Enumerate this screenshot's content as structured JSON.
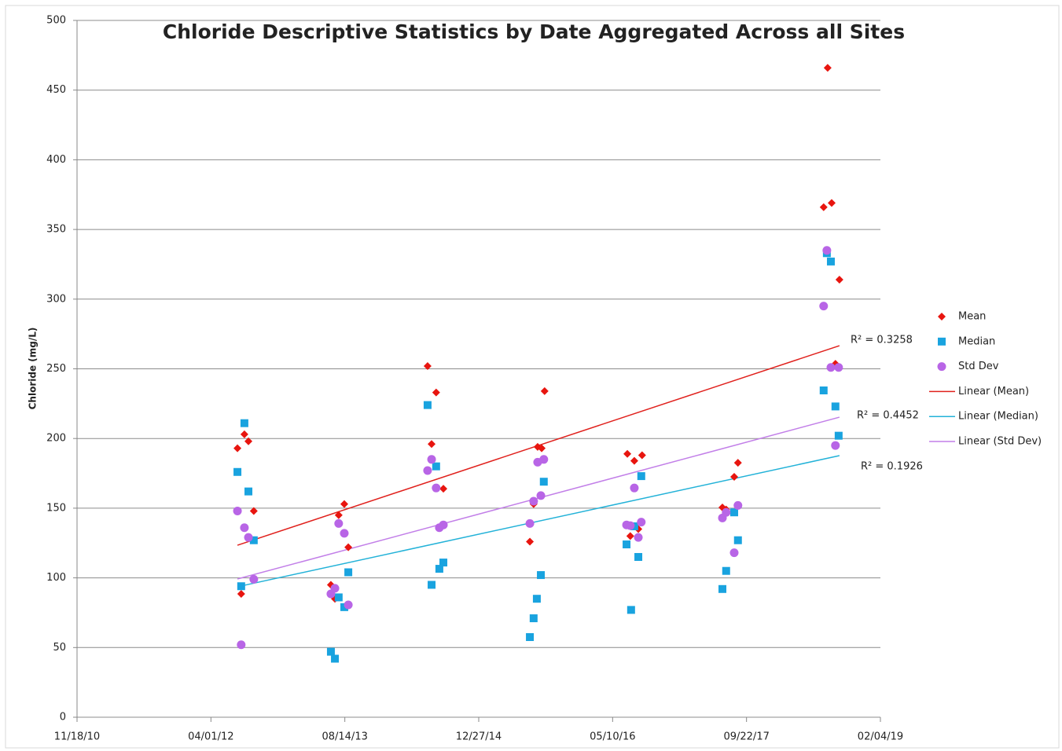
{
  "chart_data": {
    "type": "scatter",
    "title": "Chloride Descriptive Statistics by Date Aggregated Across all Sites",
    "y_label": "Chloride (mg/L)",
    "xlim": [
      40500,
      43500
    ],
    "xticks": [
      {
        "value": 40500,
        "label": "11/18/10"
      },
      {
        "value": 41000,
        "label": "04/01/12"
      },
      {
        "value": 41500,
        "label": "08/14/13"
      },
      {
        "value": 42000,
        "label": "12/27/14"
      },
      {
        "value": 42500,
        "label": "05/10/16"
      },
      {
        "value": 43000,
        "label": "09/22/17"
      },
      {
        "value": 43500,
        "label": "02/04/19"
      }
    ],
    "ylim": [
      0,
      500
    ],
    "yticks": [
      0,
      50,
      100,
      150,
      200,
      250,
      300,
      350,
      400,
      450,
      500
    ],
    "grid": true,
    "legend": "right",
    "series": [
      {
        "name": "Mean",
        "color": "#e8150f",
        "marker": "diamond",
        "x": [
          41099,
          41113,
          41125,
          41140,
          41160,
          41448,
          41463,
          41477,
          41498,
          41513,
          41809,
          41824,
          41841,
          41868,
          42191,
          42205,
          42220,
          42235,
          42246,
          42555,
          42566,
          42581,
          42596,
          42610,
          42910,
          42924,
          42954,
          42968,
          43288,
          43303,
          43318,
          43332,
          43347
        ],
        "values": [
          193,
          88.5,
          203,
          198,
          148,
          95,
          85,
          145,
          153,
          122,
          252,
          196,
          233,
          164,
          126,
          153,
          194,
          193,
          234,
          189,
          130,
          184,
          135,
          188,
          150.5,
          149,
          172.5,
          182.6,
          366,
          466,
          369,
          253.6,
          314
        ]
      },
      {
        "name": "Median",
        "color": "#19a3df",
        "marker": "square",
        "x": [
          41099,
          41113,
          41125,
          41140,
          41160,
          41448,
          41463,
          41477,
          41498,
          41513,
          41809,
          41824,
          41841,
          41853,
          41868,
          42191,
          42205,
          42217,
          42232,
          42243,
          42552,
          42569,
          42581,
          42596,
          42607,
          42910,
          42924,
          42954,
          42968,
          43288,
          43300,
          43315,
          43332,
          43344
        ],
        "values": [
          176,
          94,
          211,
          162,
          127,
          47,
          42,
          86,
          79,
          104,
          224,
          95,
          180,
          106.5,
          111,
          57.5,
          71,
          85,
          102,
          169,
          124,
          77,
          137,
          115,
          173,
          92,
          105,
          147,
          127,
          234.5,
          333,
          327,
          223,
          202
        ]
      },
      {
        "name": "Std Dev",
        "color": "#b865e6",
        "marker": "circle",
        "x": [
          41099,
          41113,
          41125,
          41140,
          41160,
          41448,
          41463,
          41477,
          41498,
          41513,
          41809,
          41824,
          41841,
          41853,
          41868,
          42191,
          42205,
          42220,
          42232,
          42243,
          42552,
          42566,
          42581,
          42596,
          42607,
          42910,
          42924,
          42954,
          42968,
          43288,
          43300,
          43315,
          43332,
          43344
        ],
        "values": [
          148,
          52,
          136,
          129,
          99,
          88.5,
          92.5,
          139,
          132,
          80.6,
          177,
          185,
          164.5,
          136,
          138,
          139,
          155,
          183,
          159,
          185,
          138,
          137.5,
          164.5,
          129,
          140,
          143,
          147,
          118,
          152,
          295,
          335,
          251,
          195,
          251
        ]
      }
    ],
    "trendlines": [
      {
        "name": "Linear (Mean)",
        "color": "#e0201c",
        "x": [
          41099,
          43347
        ],
        "values": [
          123.4,
          266.6
        ]
      },
      {
        "name": "Linear (Median)",
        "color": "#23b2d8",
        "x": [
          41099,
          43347
        ],
        "values": [
          93.6,
          187.7
        ]
      },
      {
        "name": "Linear (Std Dev)",
        "color": "#c27fe8",
        "x": [
          41099,
          43347
        ],
        "values": [
          99.2,
          215.3
        ]
      }
    ],
    "annotations": [
      "R² = 0.3258",
      "R² = 0.4452",
      "R² = 0.1926"
    ]
  }
}
